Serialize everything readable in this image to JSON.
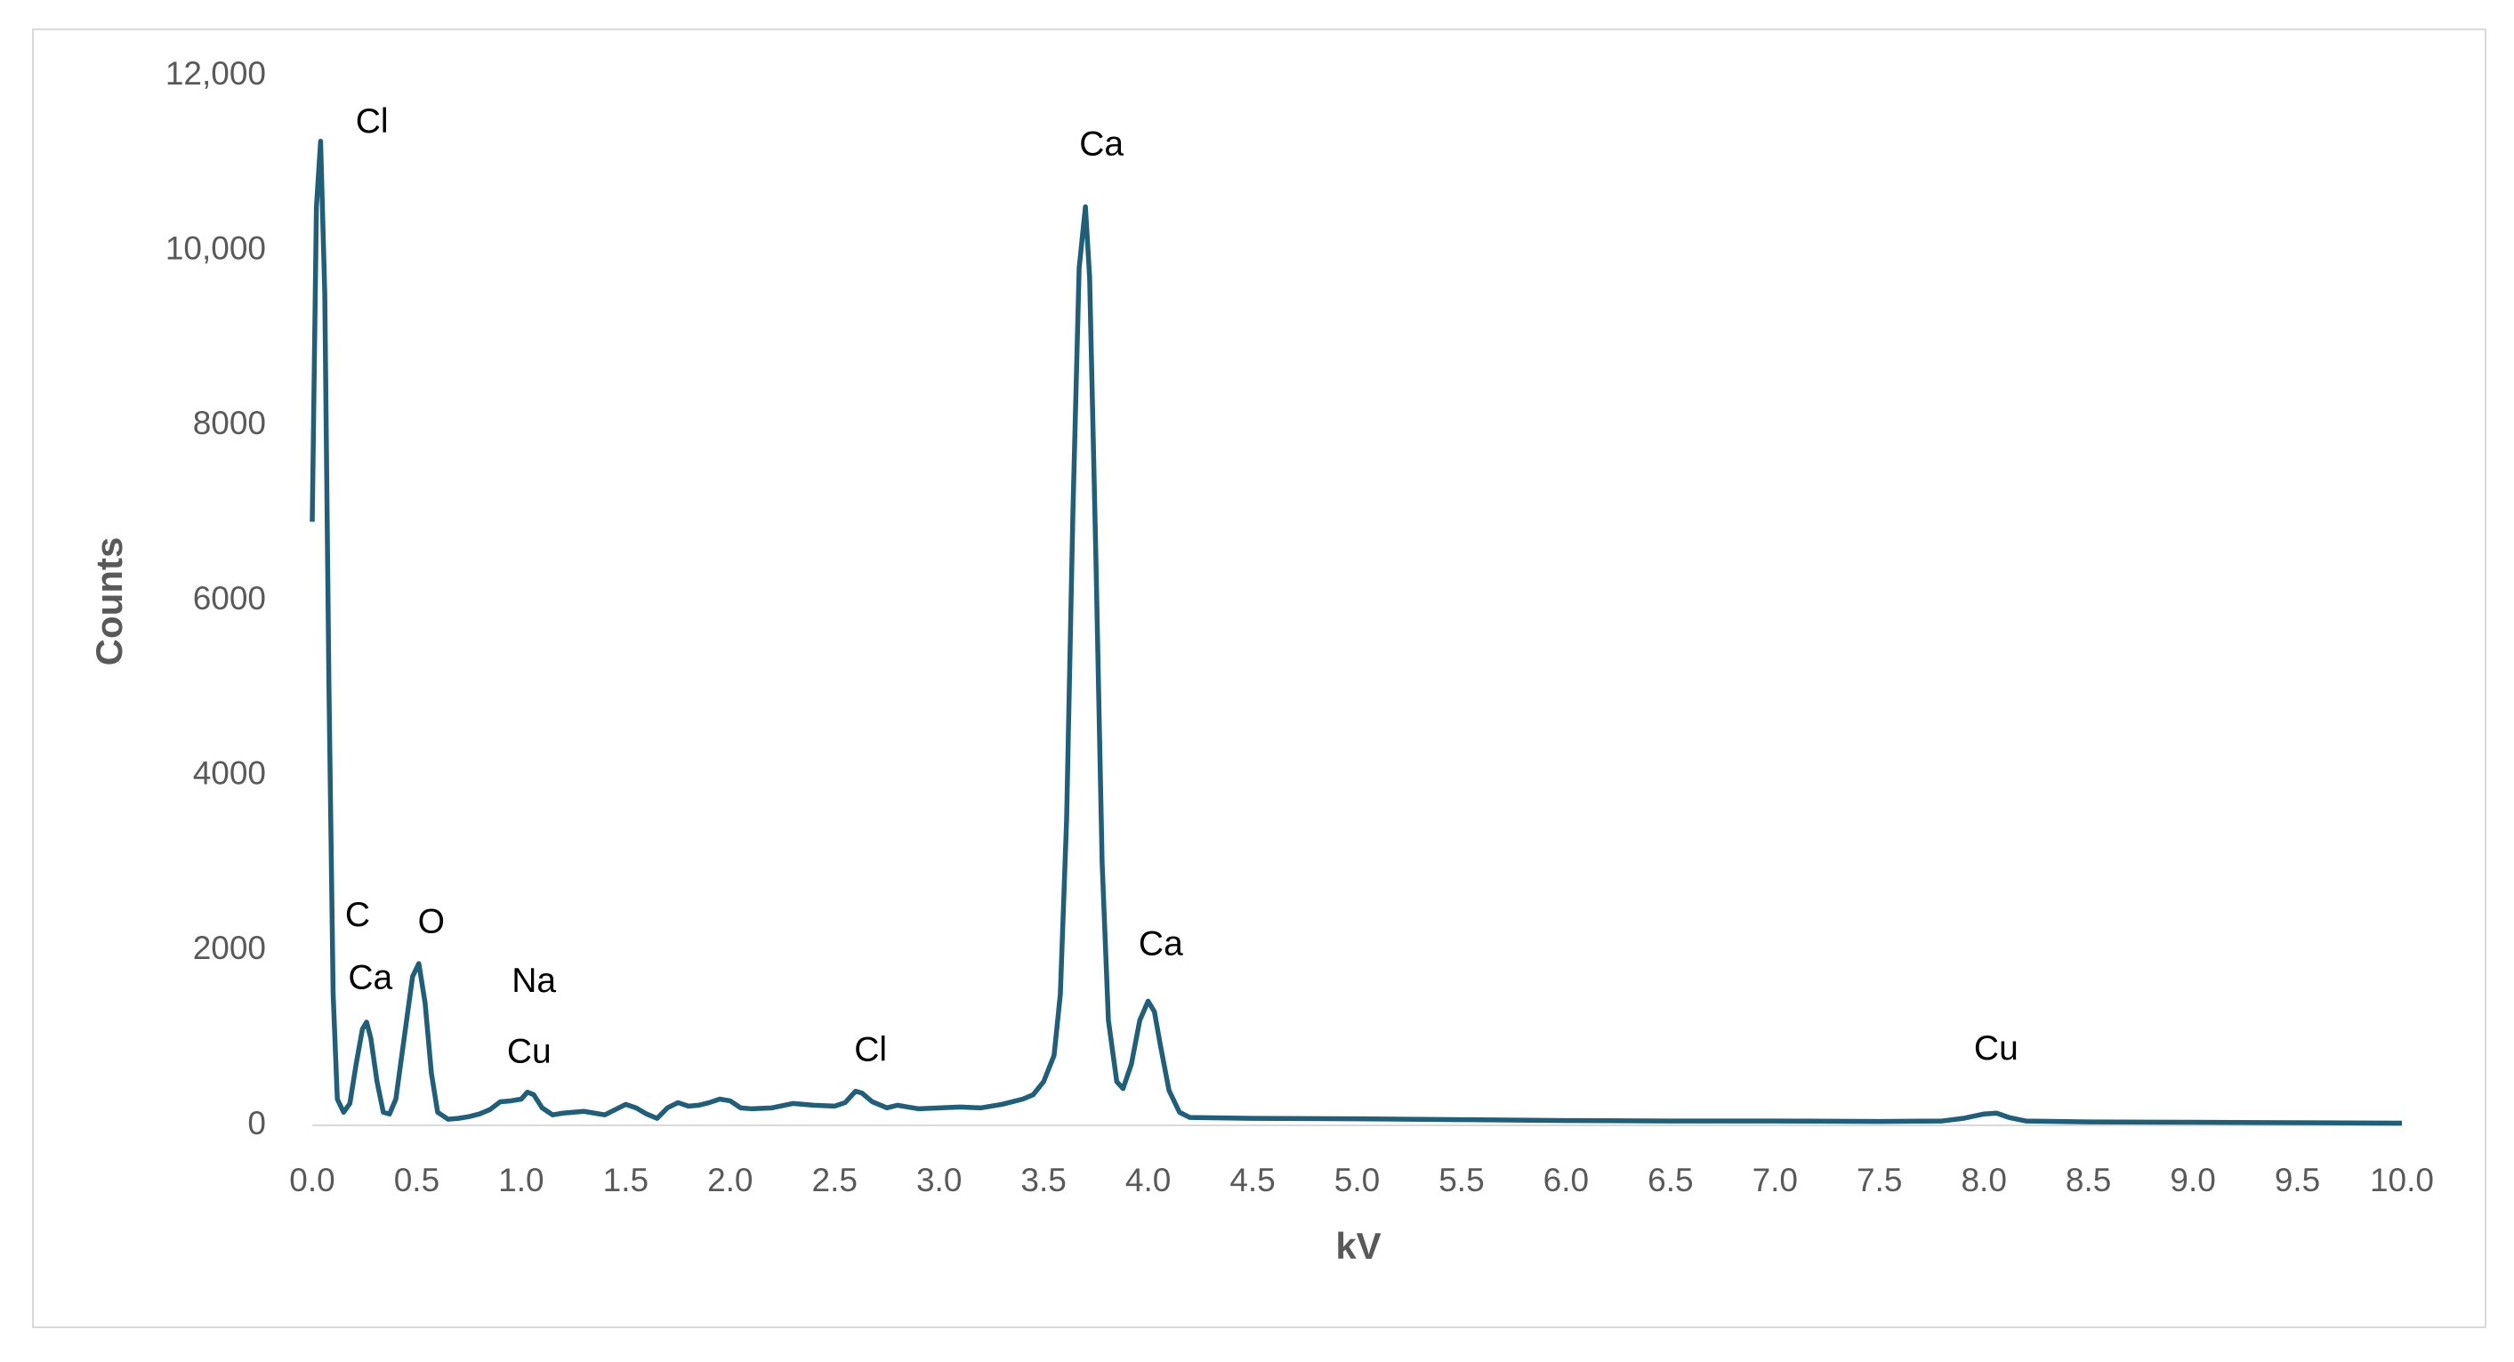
{
  "chart_data": {
    "type": "line",
    "x_label": "kV",
    "y_label": "Counts",
    "xlim": [
      0,
      10
    ],
    "ylim": [
      0,
      12000
    ],
    "xticks": [
      {
        "value": 0,
        "label": "0.0"
      },
      0.5,
      {
        "value": 1,
        "label": "1.0"
      },
      1.5,
      {
        "value": 2,
        "label": "2.0"
      },
      2.5,
      {
        "value": 3,
        "label": "3.0"
      },
      3.5,
      {
        "value": 4,
        "label": "4.0"
      },
      4.5,
      {
        "value": 5,
        "label": "5.0"
      },
      5.5,
      {
        "value": 6,
        "label": "6.0"
      },
      6.5,
      {
        "value": 7,
        "label": "7.0"
      },
      7.5,
      {
        "value": 8,
        "label": "8.0"
      },
      8.5,
      {
        "value": 9,
        "label": "9.0"
      },
      9.5,
      {
        "value": 10,
        "label": "10.0"
      }
    ],
    "yticks": [
      0,
      2000,
      4000,
      6000,
      8000,
      {
        "value": 10000,
        "label": "10,000"
      },
      {
        "value": 12000,
        "label": "12,000"
      }
    ],
    "grid": false,
    "annotations": [
      "Cl",
      "Ca",
      "C",
      "Ca",
      "O",
      "Na",
      "Cu",
      "Cl",
      "Ca",
      "Cu"
    ],
    "series": [
      {
        "color": "#1f5f7a",
        "x": [
          0.0,
          0.02,
          0.04,
          0.06,
          0.08,
          0.1,
          0.12,
          0.15,
          0.18,
          0.21,
          0.24,
          0.26,
          0.28,
          0.31,
          0.34,
          0.37,
          0.4,
          0.44,
          0.48,
          0.51,
          0.54,
          0.57,
          0.6,
          0.65,
          0.7,
          0.75,
          0.8,
          0.85,
          0.9,
          0.95,
          1.0,
          1.03,
          1.06,
          1.1,
          1.15,
          1.2,
          1.3,
          1.35,
          1.4,
          1.45,
          1.5,
          1.55,
          1.6,
          1.65,
          1.7,
          1.75,
          1.8,
          1.85,
          1.9,
          1.95,
          2.0,
          2.05,
          2.1,
          2.2,
          2.3,
          2.4,
          2.5,
          2.55,
          2.6,
          2.63,
          2.68,
          2.75,
          2.8,
          2.9,
          3.0,
          3.1,
          3.2,
          3.3,
          3.4,
          3.45,
          3.5,
          3.55,
          3.58,
          3.61,
          3.64,
          3.67,
          3.7,
          3.72,
          3.75,
          3.78,
          3.81,
          3.85,
          3.88,
          3.92,
          3.96,
          4.0,
          4.03,
          4.06,
          4.1,
          4.15,
          4.2,
          4.5,
          5.0,
          5.5,
          6.0,
          6.5,
          7.0,
          7.5,
          7.8,
          7.9,
          8.0,
          8.06,
          8.12,
          8.2,
          8.5,
          9.0,
          9.5,
          10.0
        ],
        "values": [
          6900,
          10500,
          11250,
          9500,
          5000,
          1500,
          300,
          150,
          250,
          700,
          1100,
          1180,
          1000,
          500,
          150,
          130,
          300,
          1000,
          1700,
          1850,
          1400,
          600,
          150,
          70,
          80,
          100,
          130,
          180,
          270,
          280,
          300,
          380,
          350,
          200,
          120,
          140,
          160,
          140,
          120,
          180,
          240,
          200,
          130,
          80,
          200,
          260,
          220,
          230,
          260,
          300,
          280,
          200,
          190,
          200,
          250,
          230,
          220,
          260,
          390,
          370,
          270,
          200,
          230,
          190,
          200,
          210,
          200,
          240,
          300,
          350,
          500,
          800,
          1500,
          3500,
          7000,
          9800,
          10500,
          9700,
          6500,
          3000,
          1200,
          500,
          420,
          700,
          1200,
          1420,
          1300,
          900,
          400,
          150,
          90,
          80,
          75,
          65,
          55,
          50,
          50,
          45,
          50,
          80,
          130,
          140,
          90,
          50,
          40,
          35,
          30,
          25
        ]
      }
    ]
  }
}
